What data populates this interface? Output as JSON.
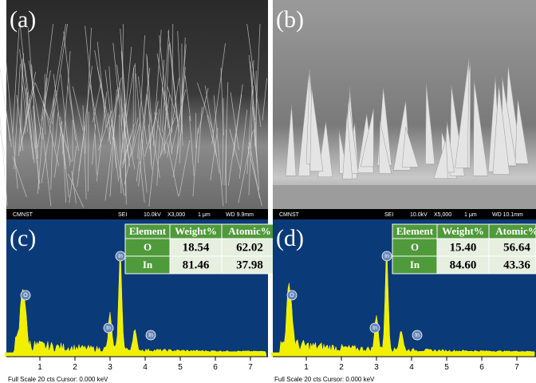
{
  "panels": [
    {
      "label": "(a)",
      "info": [
        "CMNST",
        "SEI",
        "10.0kV",
        "X3,000",
        "1 μm",
        "WD 9.9mm"
      ]
    },
    {
      "label": "(b)",
      "info": [
        "CMNST",
        "SEI",
        "10.0kV",
        "X5,000",
        "1 μm",
        "WD 10.1mm"
      ]
    },
    {
      "label": "(c)",
      "table": {
        "header": [
          "Element",
          "Weight%",
          "Atomic%"
        ],
        "rows": [
          [
            "O",
            "18.54",
            "62.02"
          ],
          [
            "In",
            "81.46",
            "37.98"
          ]
        ]
      },
      "peaks": [
        "O",
        "In",
        "In",
        "In"
      ],
      "ticks": [
        "1",
        "2",
        "3",
        "4",
        "5",
        "6",
        "7"
      ],
      "footer": "Full Scale 20 cts  Cursor: 0.000 keV"
    },
    {
      "label": "(d)",
      "table": {
        "header": [
          "Element",
          "Weight%",
          "Atomic%"
        ],
        "rows": [
          [
            "O",
            "15.40",
            "56.64"
          ],
          [
            "In",
            "84.60",
            "43.36"
          ]
        ]
      },
      "peaks": [
        "O",
        "In",
        "In",
        "In"
      ],
      "ticks": [
        "1",
        "2",
        "3",
        "4",
        "5",
        "6",
        "7"
      ],
      "footer": "Full Scale 20 cts  Cursor: 0.000 keV"
    }
  ]
}
